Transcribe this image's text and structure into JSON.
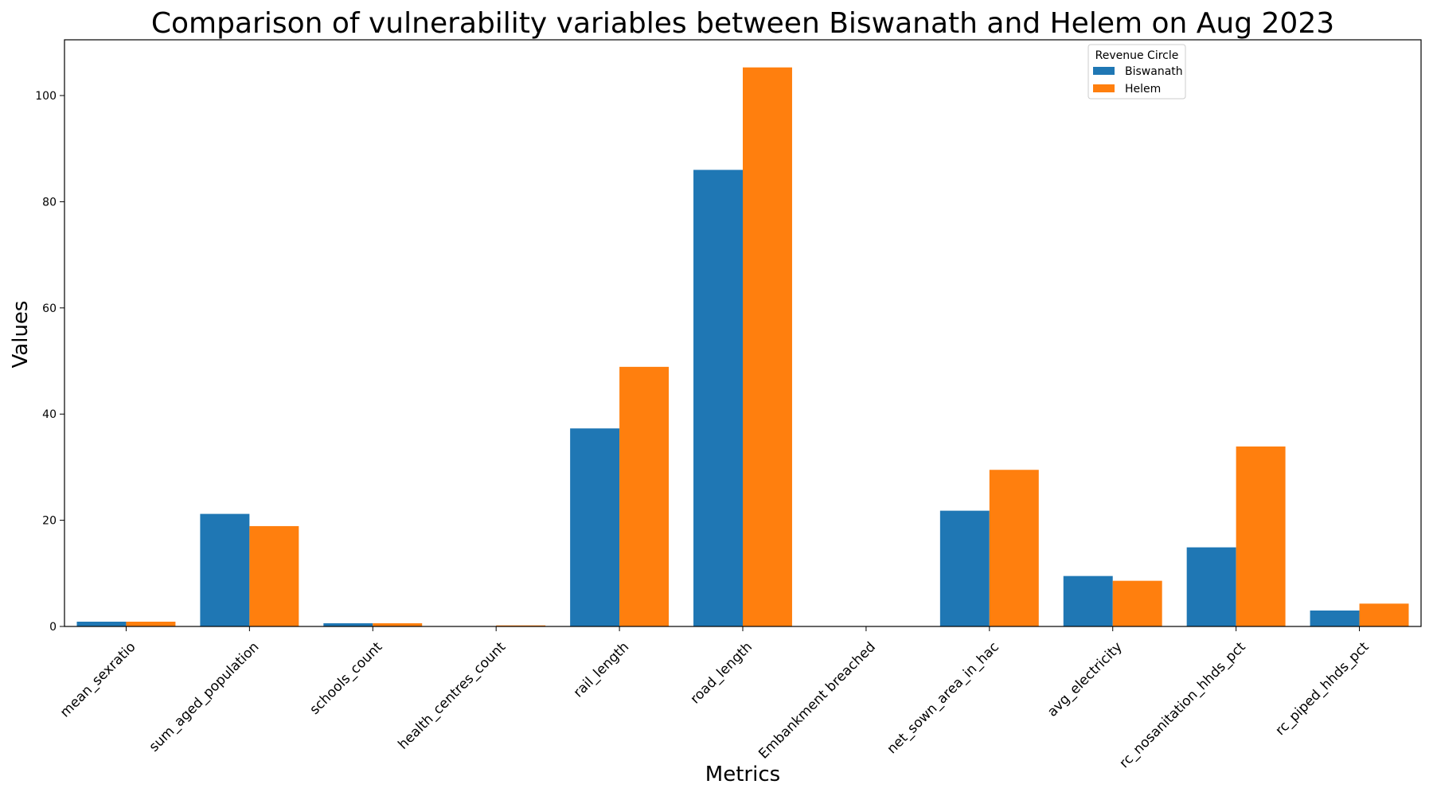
{
  "chart_data": {
    "type": "bar",
    "title": "Comparison of vulnerability variables between Biswanath and Helem on Aug 2023",
    "xlabel": "Metrics",
    "ylabel": "Values",
    "ylim": [
      0,
      110.5
    ],
    "yticks": [
      0,
      20,
      40,
      60,
      80,
      100
    ],
    "grid": false,
    "legend": {
      "title": "Revenue Circle",
      "placement": "top-right"
    },
    "categories": [
      "mean_sexratio",
      "sum_aged_population",
      "schools_count",
      "health_centres_count",
      "rail_length",
      "road_length",
      "Embankment breached",
      "net_sown_area_in_hac",
      "avg_electricity",
      "rc_nosanitation_hhds_pct",
      "rc_piped_hhds_pct"
    ],
    "series": [
      {
        "name": "Biswanath",
        "color": "#1f77b4",
        "values": [
          0.9,
          21.2,
          0.6,
          0.0,
          37.3,
          86.0,
          0.0,
          21.8,
          9.5,
          14.9,
          3.0
        ]
      },
      {
        "name": "Helem",
        "color": "#ff7f0e",
        "values": [
          0.9,
          18.9,
          0.6,
          0.2,
          48.9,
          105.3,
          0.0,
          29.5,
          8.6,
          33.9,
          4.3
        ]
      }
    ]
  }
}
